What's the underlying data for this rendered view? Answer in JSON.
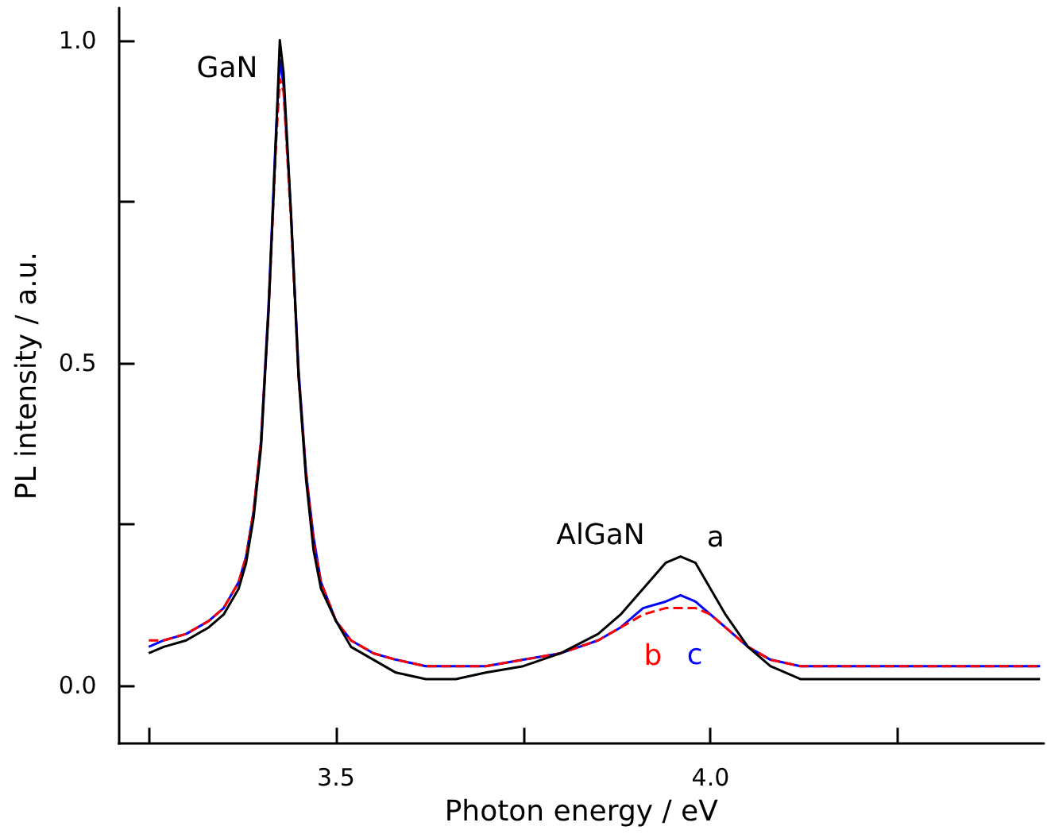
{
  "chart_data": {
    "type": "line",
    "xlabel": "Photon energy / eV",
    "ylabel": "PL intensity / a.u.",
    "x": [
      3.25,
      3.27,
      3.3,
      3.33,
      3.35,
      3.37,
      3.38,
      3.39,
      3.4,
      3.41,
      3.42,
      3.425,
      3.43,
      3.44,
      3.45,
      3.46,
      3.47,
      3.48,
      3.5,
      3.52,
      3.55,
      3.58,
      3.62,
      3.66,
      3.7,
      3.75,
      3.8,
      3.85,
      3.88,
      3.91,
      3.94,
      3.96,
      3.98,
      4.0,
      4.02,
      4.05,
      4.08,
      4.12,
      4.2,
      4.3,
      4.4,
      4.44
    ],
    "series": [
      {
        "name": "a",
        "color": "#000000",
        "line_style": "solid",
        "values": [
          0.05,
          0.06,
          0.07,
          0.09,
          0.11,
          0.15,
          0.19,
          0.26,
          0.37,
          0.58,
          0.85,
          1.0,
          0.95,
          0.73,
          0.48,
          0.32,
          0.21,
          0.15,
          0.1,
          0.06,
          0.04,
          0.02,
          0.01,
          0.01,
          0.02,
          0.03,
          0.05,
          0.08,
          0.11,
          0.15,
          0.19,
          0.2,
          0.19,
          0.15,
          0.11,
          0.06,
          0.03,
          0.01,
          0.01,
          0.01,
          0.01,
          0.01
        ]
      },
      {
        "name": "b",
        "color": "#ff0000",
        "line_style": "dashed",
        "values": [
          0.07,
          0.07,
          0.08,
          0.1,
          0.12,
          0.16,
          0.2,
          0.27,
          0.38,
          0.58,
          0.84,
          0.94,
          0.92,
          0.72,
          0.48,
          0.33,
          0.22,
          0.16,
          0.1,
          0.07,
          0.05,
          0.04,
          0.03,
          0.03,
          0.03,
          0.04,
          0.05,
          0.07,
          0.09,
          0.11,
          0.12,
          0.12,
          0.12,
          0.11,
          0.09,
          0.06,
          0.04,
          0.03,
          0.03,
          0.03,
          0.03,
          0.03
        ]
      },
      {
        "name": "c",
        "color": "#0000ff",
        "line_style": "solid",
        "values": [
          0.06,
          0.07,
          0.08,
          0.1,
          0.12,
          0.16,
          0.2,
          0.27,
          0.38,
          0.59,
          0.86,
          0.97,
          0.93,
          0.73,
          0.49,
          0.33,
          0.23,
          0.16,
          0.1,
          0.07,
          0.05,
          0.04,
          0.03,
          0.03,
          0.03,
          0.04,
          0.05,
          0.07,
          0.09,
          0.12,
          0.13,
          0.14,
          0.13,
          0.11,
          0.09,
          0.06,
          0.04,
          0.03,
          0.03,
          0.03,
          0.03,
          0.03
        ]
      }
    ],
    "xlim": [
      3.21,
      4.445
    ],
    "ylim": [
      -0.09,
      1.05
    ],
    "xticks": [
      {
        "value": 3.25,
        "label": null
      },
      3.5,
      {
        "value": 3.75,
        "label": null
      },
      {
        "value": 4,
        "label": "4.0"
      },
      {
        "value": 4.25,
        "label": null
      }
    ],
    "yticks": [
      {
        "value": 0,
        "label": "0.0"
      },
      {
        "value": 0.25,
        "label": null
      },
      0.5,
      {
        "value": 0.75,
        "label": null
      },
      {
        "value": 1,
        "label": "1.0"
      }
    ],
    "annotations": [
      "GaN",
      "AlGaN"
    ],
    "grid": false,
    "legend": false,
    "marker": "none"
  }
}
